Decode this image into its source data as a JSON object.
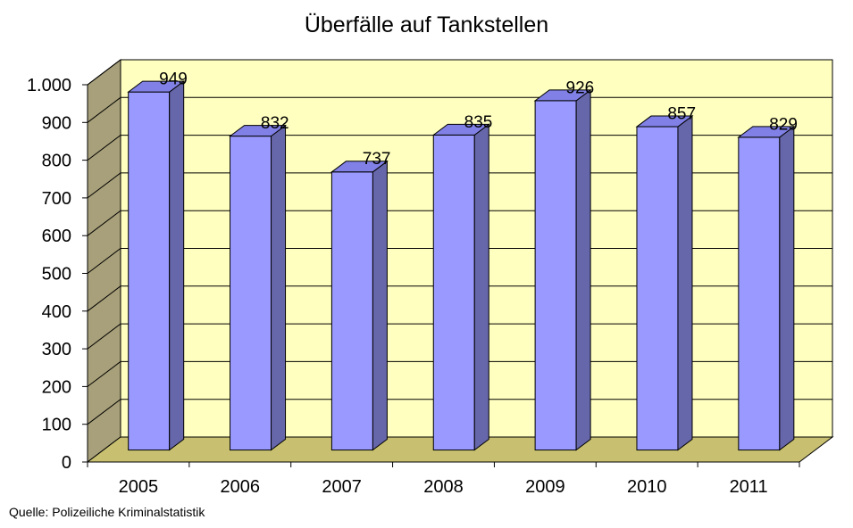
{
  "chart_data": {
    "type": "bar",
    "title": "Überfälle auf Tankstellen",
    "categories": [
      "2005",
      "2006",
      "2007",
      "2008",
      "2009",
      "2010",
      "2011"
    ],
    "values": [
      949,
      832,
      737,
      835,
      926,
      857,
      829
    ],
    "data_labels": [
      "949",
      "832",
      "737",
      "835",
      "926",
      "857",
      "829"
    ],
    "ylim": [
      0,
      1000
    ],
    "yticks": [
      0,
      100,
      200,
      300,
      400,
      500,
      600,
      700,
      800,
      900,
      1000
    ],
    "ytick_labels": [
      "0",
      "100",
      "200",
      "300",
      "400",
      "500",
      "600",
      "700",
      "800",
      "900",
      "1.000"
    ],
    "grid": true,
    "style": "3d",
    "legend": "none",
    "colors": {
      "bar_front": "#9999ff",
      "bar_side": "#6666aa",
      "bar_top": "#8080e6",
      "back_wall": "#ffffc0",
      "side_wall": "#a8a07a",
      "floor": "#c8c070"
    }
  },
  "source": "Quelle: Polizeiliche Kriminalstatistik"
}
